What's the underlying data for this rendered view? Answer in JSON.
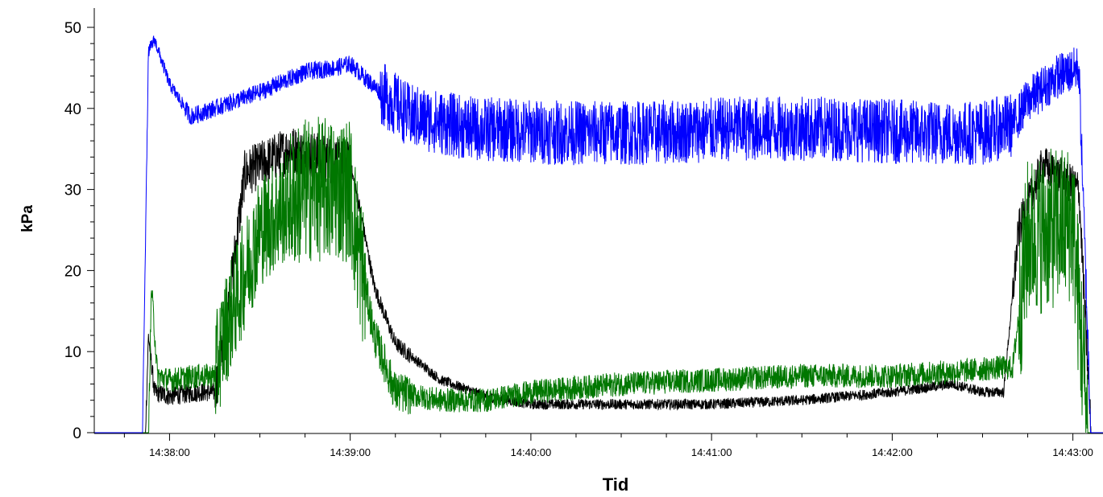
{
  "chart_data": {
    "type": "line",
    "title": "",
    "xlabel": "Tid",
    "ylabel": "kPa",
    "ylim": [
      0,
      50
    ],
    "xlim": [
      "14:37:35",
      "14:43:10"
    ],
    "grid": false,
    "y_ticks": [
      "0",
      "10",
      "20",
      "30",
      "40",
      "50"
    ],
    "x_ticks": [
      "14:38:00",
      "14:39:00",
      "14:40:00",
      "14:41:00",
      "14:42:00",
      "14:43:00"
    ],
    "series": [
      {
        "color": "#0000ff",
        "noise": [
          0.8,
          0.5,
          0.9,
          1.1,
          2.8,
          4.0,
          4.0,
          4.0,
          4.0,
          2.5,
          0
        ],
        "x": [
          "14:37:35",
          "14:37:51",
          "14:37:53",
          "14:37:55",
          "14:38:00",
          "14:38:07",
          "14:38:15",
          "14:38:30",
          "14:38:45",
          "14:38:55",
          "14:39:00",
          "14:39:10",
          "14:39:20",
          "14:39:40",
          "14:40:10",
          "14:40:40",
          "14:41:10",
          "14:41:40",
          "14:42:10",
          "14:42:30",
          "14:42:40",
          "14:42:45",
          "14:42:55",
          "14:43:02",
          "14:43:06",
          "14:43:10"
        ],
        "values": [
          0,
          0,
          47,
          48.5,
          43,
          39,
          40,
          42,
          44.5,
          45,
          45.5,
          42,
          39,
          37.5,
          37,
          37,
          37.5,
          37.5,
          37,
          37,
          38,
          41,
          44,
          45,
          0,
          0
        ]
      },
      {
        "color": "#000000",
        "noise": [
          0.3,
          1.2,
          1.5,
          3.0,
          1.0,
          0.3,
          0.5,
          2.5,
          0.2
        ],
        "x": [
          "14:37:35",
          "14:37:52",
          "14:37:53",
          "14:37:55",
          "14:38:00",
          "14:38:10",
          "14:38:15",
          "14:38:18",
          "14:38:25",
          "14:38:40",
          "14:39:00",
          "14:39:03",
          "14:39:08",
          "14:39:15",
          "14:39:30",
          "14:39:45",
          "14:40:00",
          "14:40:30",
          "14:41:00",
          "14:41:30",
          "14:42:00",
          "14:42:10",
          "14:42:20",
          "14:42:25",
          "14:42:30",
          "14:42:37",
          "14:42:42",
          "14:42:50",
          "14:43:02",
          "14:43:06",
          "14:43:10"
        ],
        "values": [
          0,
          0,
          12,
          5,
          4.5,
          5,
          5,
          11,
          32,
          35,
          33,
          28,
          18,
          11,
          6.5,
          4.5,
          3.5,
          3.5,
          3.5,
          4,
          5,
          5.5,
          6,
          5.5,
          5,
          5,
          25,
          33,
          30,
          0,
          0
        ]
      },
      {
        "color": "#007700",
        "noise": [
          0.5,
          1.0,
          1.5,
          7.0,
          9.0,
          2.5,
          1.0,
          1.5,
          2.0,
          1.5,
          10.0,
          0.3
        ],
        "x": [
          "14:37:35",
          "14:37:53",
          "14:37:54",
          "14:37:56",
          "14:38:00",
          "14:38:10",
          "14:38:15",
          "14:38:18",
          "14:38:30",
          "14:38:45",
          "14:39:00",
          "14:39:02",
          "14:39:08",
          "14:39:15",
          "14:39:30",
          "14:39:45",
          "14:40:00",
          "14:40:30",
          "14:41:00",
          "14:41:30",
          "14:42:00",
          "14:42:20",
          "14:42:35",
          "14:42:40",
          "14:42:45",
          "14:43:00",
          "14:43:05",
          "14:43:10"
        ],
        "values": [
          0,
          0,
          18,
          7,
          6.5,
          7,
          7,
          12,
          25,
          30,
          30,
          24,
          12,
          5,
          4,
          4,
          5,
          6,
          6.5,
          7,
          7,
          7.5,
          8,
          8,
          24,
          26,
          0,
          0
        ]
      }
    ]
  }
}
